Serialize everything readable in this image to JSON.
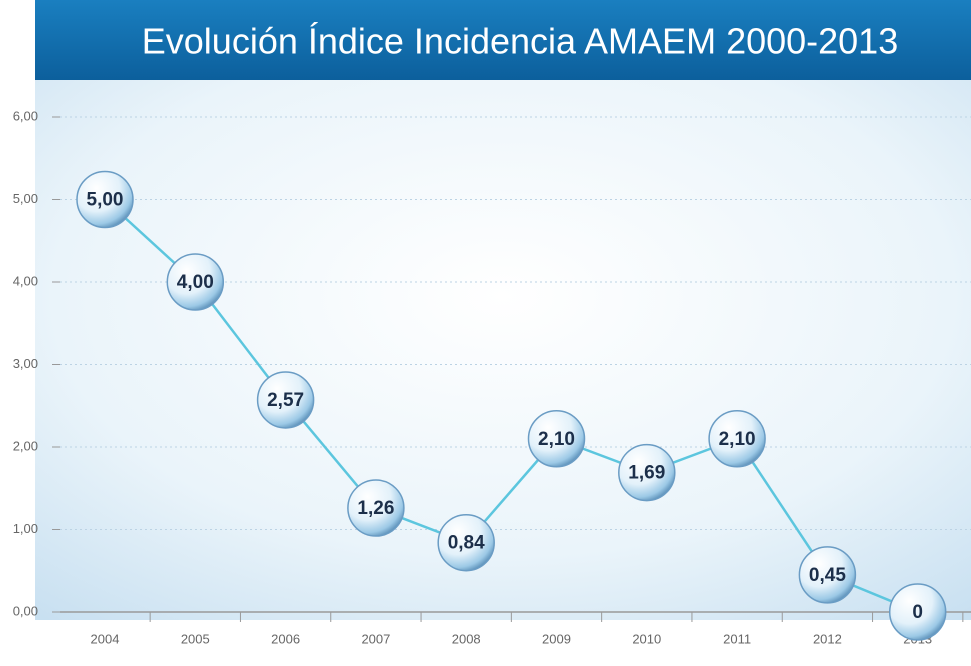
{
  "chart_data": {
    "type": "line",
    "title": "Evolución Índice Incidencia AMAEM 2000-2013",
    "categories": [
      "2004",
      "2005",
      "2006",
      "2007",
      "2008",
      "2009",
      "2010",
      "2011",
      "2012",
      "2013"
    ],
    "values": [
      5.0,
      4.0,
      2.57,
      1.26,
      0.84,
      2.1,
      1.69,
      2.1,
      0.45,
      0
    ],
    "value_labels": [
      "5,00",
      "4,00",
      "2,57",
      "1,26",
      "0,84",
      "2,10",
      "1,69",
      "2,10",
      "0,45",
      "0"
    ],
    "color": "#5cc6de",
    "ylim": [
      0,
      6
    ],
    "yticks": [
      {
        "value": 0,
        "label": "0,00"
      },
      {
        "value": 1,
        "label": "1,00"
      },
      {
        "value": 2,
        "label": "2,00"
      },
      {
        "value": 3,
        "label": "3,00"
      },
      {
        "value": 4,
        "label": "4,00"
      },
      {
        "value": 5,
        "label": "5,00"
      },
      {
        "value": 6,
        "label": "6,00"
      }
    ],
    "grid": true
  }
}
